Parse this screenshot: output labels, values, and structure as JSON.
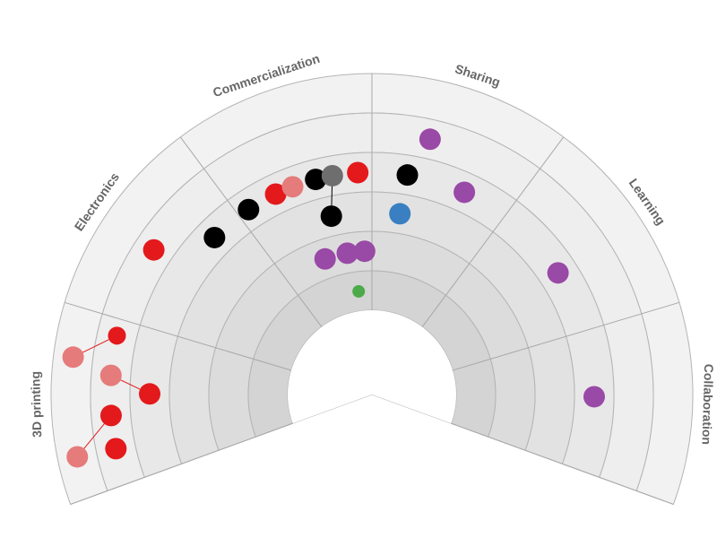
{
  "colors": {
    "ring_fills": [
      "#cbcbcb",
      "#d4d4d4",
      "#dcdcdc",
      "#e2e2e2",
      "#e8e8e8",
      "#eeeeee",
      "#f2f2f2"
    ],
    "ring_stroke": "#b4b4b4",
    "label": "#666666",
    "red": "#e3191c",
    "red_faded": "#e57b7b",
    "black": "#000000",
    "gray": "#6e6e6e",
    "purple": "#9949a6",
    "blue": "#3a7fc1",
    "green": "#4caa4a"
  },
  "sectors": [
    {
      "name": "3D printing"
    },
    {
      "name": "Electronics"
    },
    {
      "name": "Commercialization"
    },
    {
      "name": "Sharing"
    },
    {
      "name": "Learning"
    },
    {
      "name": "Collaboration"
    }
  ],
  "items": [
    {
      "sector": "3D printing",
      "ring": 7,
      "offset": 0.22,
      "color": "red_faded",
      "size": "large"
    },
    {
      "sector": "3D printing",
      "ring": 6,
      "offset": 0.42,
      "color": "red",
      "size": "large"
    },
    {
      "sector": "3D printing",
      "ring": 6,
      "offset": 0.22,
      "color": "red",
      "size": "large"
    },
    {
      "sector": "3D printing",
      "ring": 7,
      "offset": 0.74,
      "color": "red_faded",
      "size": "large"
    },
    {
      "sector": "3D printing",
      "ring": 6,
      "offset": 0.66,
      "color": "red_faded",
      "size": "large"
    },
    {
      "sector": "3D printing",
      "ring": 5,
      "offset": 0.55,
      "color": "red",
      "size": "large"
    },
    {
      "sector": "3D printing",
      "ring": 6,
      "offset": 0.9,
      "color": "red",
      "size": "medium"
    },
    {
      "sector": "Electronics",
      "ring": 6,
      "offset": 0.46,
      "color": "red",
      "size": "large"
    },
    {
      "sector": "Electronics",
      "ring": 5,
      "offset": 0.77,
      "color": "black",
      "size": "large"
    },
    {
      "sector": "Commercialization",
      "ring": 5,
      "offset": 0.08,
      "color": "black",
      "size": "large"
    },
    {
      "sector": "Commercialization",
      "ring": 5,
      "offset": 0.3,
      "color": "red",
      "size": "large"
    },
    {
      "sector": "Commercialization",
      "ring": 5,
      "offset": 0.43,
      "color": "red_faded",
      "size": "large"
    },
    {
      "sector": "Commercialization",
      "ring": 5,
      "offset": 0.6,
      "color": "black",
      "size": "large"
    },
    {
      "sector": "Commercialization",
      "ring": 5,
      "offset": 0.72,
      "color": "gray",
      "size": "large"
    },
    {
      "sector": "Commercialization",
      "ring": 5,
      "offset": 0.9,
      "color": "red",
      "size": "large"
    },
    {
      "sector": "Commercialization",
      "ring": 4,
      "offset": 0.65,
      "color": "black",
      "size": "large"
    },
    {
      "sector": "Commercialization",
      "ring": 3,
      "offset": 0.48,
      "color": "purple",
      "size": "large"
    },
    {
      "sector": "Commercialization",
      "ring": 3,
      "offset": 0.73,
      "color": "purple",
      "size": "large"
    },
    {
      "sector": "Commercialization",
      "ring": 3,
      "offset": 0.92,
      "color": "purple",
      "size": "large"
    },
    {
      "sector": "Commercialization",
      "ring": 2,
      "offset": 0.8,
      "color": "green",
      "size": "small"
    },
    {
      "sector": "Sharing",
      "ring": 6,
      "offset": 0.35,
      "color": "purple",
      "size": "large"
    },
    {
      "sector": "Sharing",
      "ring": 5,
      "offset": 0.25,
      "color": "black",
      "size": "large"
    },
    {
      "sector": "Sharing",
      "ring": 4,
      "offset": 0.24,
      "color": "blue",
      "size": "large"
    },
    {
      "sector": "Sharing",
      "ring": 5,
      "offset": 0.67,
      "color": "purple",
      "size": "large"
    },
    {
      "sector": "Learning",
      "ring": 5,
      "offset": 0.55,
      "color": "purple",
      "size": "large"
    },
    {
      "sector": "Collaboration",
      "ring": 5,
      "offset": 0.47,
      "color": "purple",
      "size": "large"
    }
  ],
  "arrows": [
    {
      "from": 1,
      "to": 0,
      "color": "red"
    },
    {
      "from": 5,
      "to": 4,
      "color": "red"
    },
    {
      "from": 6,
      "to": 3,
      "color": "red"
    },
    {
      "from": 10,
      "to": 11,
      "color": "red"
    },
    {
      "from": 15,
      "to": 13,
      "color": "black"
    }
  ]
}
